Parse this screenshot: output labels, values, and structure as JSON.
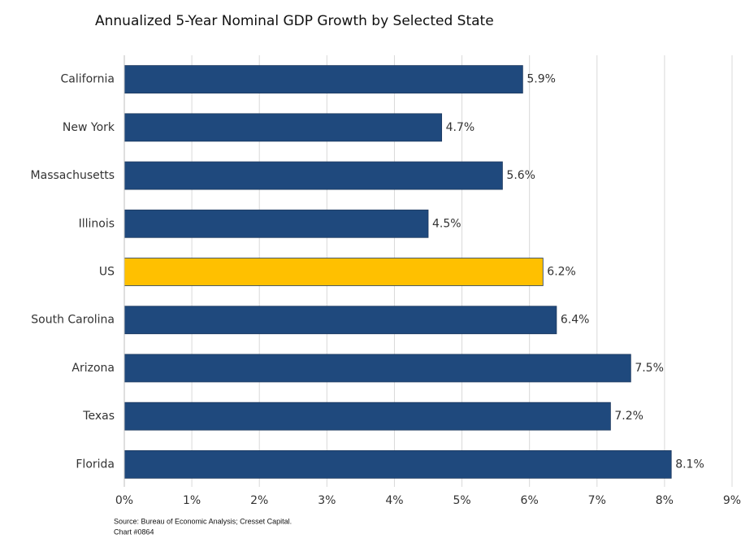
{
  "chart_data": {
    "type": "bar",
    "orientation": "horizontal",
    "title": "Annualized 5-Year Nominal GDP Growth by Selected State",
    "categories": [
      "California",
      "New York",
      "Massachusetts",
      "Illinois",
      "US",
      "South Carolina",
      "Arizona",
      "Texas",
      "Florida"
    ],
    "values": [
      5.9,
      4.7,
      5.6,
      4.5,
      6.2,
      6.4,
      7.5,
      7.2,
      8.1
    ],
    "value_labels": [
      "5.9%",
      "4.7%",
      "5.6%",
      "4.5%",
      "6.2%",
      "6.4%",
      "7.5%",
      "7.2%",
      "8.1%"
    ],
    "colors": [
      "#1f497d",
      "#1f497d",
      "#1f497d",
      "#1f497d",
      "#ffc000",
      "#1f497d",
      "#1f497d",
      "#1f497d",
      "#1f497d"
    ],
    "xlim": [
      0,
      9
    ],
    "xticks": [
      {
        "value": 0,
        "label": "0%"
      },
      {
        "value": 1,
        "label": "1%"
      },
      {
        "value": 2,
        "label": "2%"
      },
      {
        "value": 3,
        "label": "3%"
      },
      {
        "value": 4,
        "label": "4%"
      },
      {
        "value": 5,
        "label": "5%"
      },
      {
        "value": 6,
        "label": "6%"
      },
      {
        "value": 7,
        "label": "7%"
      },
      {
        "value": 8,
        "label": "8%"
      },
      {
        "value": 9,
        "label": "9%"
      }
    ],
    "grid": true,
    "notes": [
      "Source: Bureau of Economic Analysis; Cresset Capital.",
      "Chart #0864"
    ]
  }
}
